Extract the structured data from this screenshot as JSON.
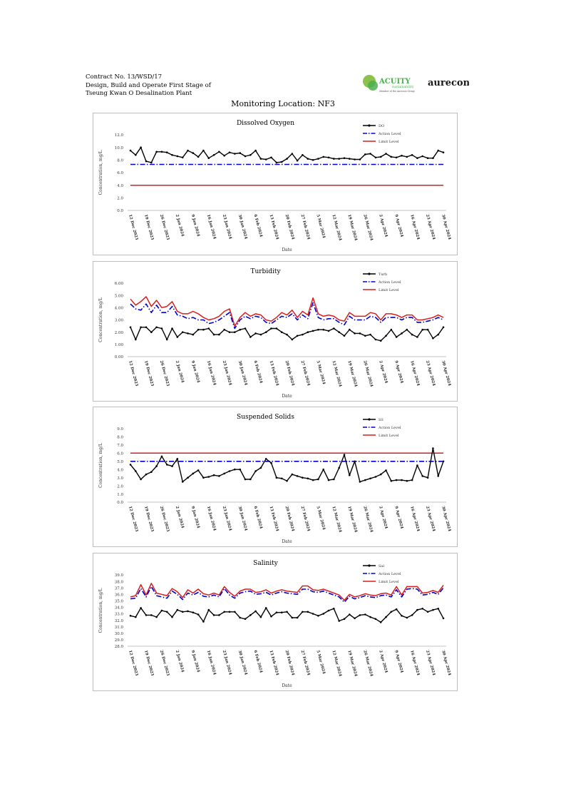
{
  "header": {
    "line1": "Contract No. 13/WSD/17",
    "line2": "Design, Build and Operate First Stage of",
    "line3": "Tseung Kwan O Desalination Plant"
  },
  "logos": {
    "acuity": "ACUITY",
    "acuity_sub": "sustainability",
    "acuity_tag": "Member of the Aurecon Group",
    "aurecon": "aurecon"
  },
  "location_title": "Monitoring Location: NF3",
  "colors": {
    "data": "#000000",
    "action": "#0000cc",
    "limit": "#d91e1e",
    "acuity_green": "#4caf50"
  },
  "x_tick_labels": [
    "12 Dec 2023",
    "19 Dec 2023",
    "26 Dec 2023",
    "2 Jan 2024",
    "9 Jan 2024",
    "16 Jan 2024",
    "23 Jan 2024",
    "30 Jan 2024",
    "6 Feb 2024",
    "13 Feb 2024",
    "20 Feb 2024",
    "27 Feb 2024",
    "5 Mar 2024",
    "12 Mar 2024",
    "19 Mar 2024",
    "26 Mar 2024",
    "2 Apr 2024",
    "9 Apr 2024",
    "16 Apr 2024",
    "23 Apr 2024",
    "30 Apr 2024"
  ],
  "chart_data": [
    {
      "type": "line",
      "title": "Dissolved Oxygen",
      "ylabel": "Concentration, mg/L",
      "xlabel": "Date",
      "ylim": [
        0,
        12
      ],
      "ytick_values": [
        0,
        2,
        4,
        6,
        8,
        10,
        12
      ],
      "ytick_labels": [
        "0.0",
        "2.0",
        "4.0",
        "6.0",
        "8.0",
        "10.0",
        "12.0"
      ],
      "legend": {
        "placement": "top-right"
      },
      "series": [
        {
          "name": "DO",
          "kind": "data",
          "values": [
            9.5,
            8.8,
            10.0,
            7.8,
            7.6,
            9.3,
            9.3,
            9.2,
            8.8,
            8.6,
            8.4,
            9.5,
            9.1,
            8.5,
            9.5,
            8.3,
            8.8,
            9.3,
            8.7,
            9.2,
            9.0,
            9.1,
            8.6,
            8.8,
            9.5,
            8.2,
            8.1,
            8.4,
            7.6,
            7.7,
            8.2,
            9.0,
            7.9,
            8.8,
            8.2,
            8.0,
            8.2,
            8.5,
            8.4,
            8.2,
            8.2,
            8.3,
            8.2,
            8.1,
            8.1,
            8.9,
            9.0,
            8.4,
            8.5,
            9.0,
            8.5,
            8.4,
            8.7,
            8.5,
            8.8,
            8.3,
            8.6,
            8.3,
            8.3,
            9.5,
            9.2
          ]
        },
        {
          "name": "Action Level",
          "kind": "action",
          "values": [
            7.3
          ]
        },
        {
          "name": "Limit Level",
          "kind": "limit",
          "values": [
            4.0
          ]
        }
      ]
    },
    {
      "type": "line",
      "title": "Turbidity",
      "ylabel": "Concentration, mg/L",
      "xlabel": "Date",
      "ylim": [
        0,
        6
      ],
      "ytick_values": [
        0,
        1,
        2,
        3,
        4,
        5,
        6
      ],
      "ytick_labels": [
        "0.00",
        "1.00",
        "2.00",
        "3.00",
        "4.00",
        "5.00",
        "6.00"
      ],
      "legend": {
        "placement": "top-right"
      },
      "series": [
        {
          "name": "Turb",
          "kind": "data",
          "values": [
            2.4,
            1.4,
            2.4,
            2.4,
            2.0,
            2.4,
            2.3,
            1.4,
            2.3,
            1.6,
            2.0,
            1.9,
            1.8,
            2.2,
            2.2,
            2.3,
            1.8,
            1.8,
            2.2,
            2.0,
            2.0,
            2.2,
            2.3,
            1.6,
            1.9,
            1.8,
            2.0,
            2.3,
            2.3,
            2.0,
            1.8,
            1.4,
            1.7,
            1.8,
            2.0,
            2.1,
            2.2,
            2.2,
            2.1,
            2.3,
            2.0,
            1.7,
            2.2,
            1.9,
            1.9,
            1.7,
            1.8,
            1.4,
            1.3,
            1.7,
            2.2,
            1.6,
            1.9,
            2.2,
            1.8,
            1.6,
            2.2,
            2.2,
            1.5,
            1.8,
            2.4
          ]
        },
        {
          "name": "Action Level",
          "kind": "action",
          "values": [
            4.3,
            3.9,
            3.8,
            4.3,
            3.6,
            4.2,
            3.6,
            3.6,
            4.1,
            3.4,
            3.3,
            3.1,
            3.2,
            3.0,
            3.0,
            2.7,
            2.8,
            3.0,
            3.3,
            3.6,
            2.3,
            3.0,
            3.3,
            3.1,
            3.3,
            3.2,
            2.8,
            2.7,
            3.0,
            3.3,
            3.2,
            3.5,
            3.0,
            3.4,
            3.1,
            4.4,
            3.2,
            3.0,
            3.1,
            3.1,
            2.8,
            2.6,
            3.3,
            3.0,
            3.0,
            3.0,
            3.3,
            3.2,
            2.8,
            3.2,
            3.2,
            3.2,
            3.0,
            3.2,
            3.2,
            2.8,
            2.8,
            2.9,
            3.0,
            3.2,
            3.0
          ]
        },
        {
          "name": "Limit Level",
          "kind": "limit",
          "values": [
            4.7,
            4.2,
            4.5,
            4.9,
            4.1,
            4.6,
            4.0,
            4.1,
            4.5,
            3.7,
            3.5,
            3.5,
            3.7,
            3.5,
            3.2,
            3.0,
            3.1,
            3.3,
            3.7,
            3.9,
            2.5,
            3.2,
            3.6,
            3.3,
            3.5,
            3.4,
            3.0,
            2.9,
            3.2,
            3.6,
            3.4,
            3.8,
            3.2,
            3.7,
            3.4,
            4.8,
            3.5,
            3.3,
            3.4,
            3.3,
            3.0,
            2.9,
            3.6,
            3.3,
            3.3,
            3.3,
            3.6,
            3.5,
            3.0,
            3.5,
            3.5,
            3.4,
            3.2,
            3.4,
            3.4,
            3.0,
            3.0,
            3.1,
            3.2,
            3.4,
            3.2
          ]
        }
      ]
    },
    {
      "type": "line",
      "title": "Suspended Solids",
      "ylabel": "Concentration, mg/L",
      "xlabel": "Date",
      "ylim": [
        0,
        9
      ],
      "ytick_values": [
        0,
        1,
        2,
        3,
        4,
        5,
        6,
        7,
        8,
        9
      ],
      "ytick_labels": [
        "0.0",
        "1.0",
        "2.0",
        "3.0",
        "4.0",
        "5.0",
        "6.0",
        "7.0",
        "8.0",
        "9.0"
      ],
      "legend": {
        "placement": "top-right"
      },
      "series": [
        {
          "name": "SS",
          "kind": "data",
          "values": [
            4.6,
            3.8,
            2.8,
            3.4,
            3.7,
            4.4,
            5.6,
            4.6,
            4.4,
            5.3,
            2.5,
            3.0,
            3.5,
            3.9,
            3.0,
            3.1,
            3.3,
            3.2,
            3.5,
            3.8,
            4.0,
            4.0,
            2.8,
            2.8,
            3.8,
            4.2,
            5.3,
            4.8,
            3.0,
            2.9,
            2.6,
            3.4,
            3.2,
            3.0,
            2.9,
            2.7,
            2.8,
            4.0,
            2.7,
            2.8,
            4.2,
            5.8,
            3.3,
            5.0,
            2.5,
            2.7,
            2.9,
            3.1,
            3.4,
            3.9,
            2.6,
            2.7,
            2.7,
            2.6,
            2.7,
            4.5,
            3.2,
            3.0,
            6.6,
            3.2,
            5.0
          ]
        },
        {
          "name": "Action Level",
          "kind": "action",
          "values": [
            5.0
          ]
        },
        {
          "name": "Limit Level",
          "kind": "limit",
          "values": [
            6.0
          ]
        }
      ]
    },
    {
      "type": "line",
      "title": "Salinity",
      "ylabel": "Concentration, mg/L",
      "xlabel": "Date",
      "ylim": [
        28,
        39
      ],
      "ytick_values": [
        28,
        29,
        30,
        31,
        32,
        33,
        34,
        35,
        36,
        37,
        38,
        39
      ],
      "ytick_labels": [
        "28.0",
        "29.0",
        "30.0",
        "31.0",
        "32.0",
        "33.0",
        "34.0",
        "35.0",
        "36.0",
        "37.0",
        "38.0",
        "39.0"
      ],
      "legend": {
        "placement": "top-right"
      },
      "series": [
        {
          "name": "Sal",
          "kind": "data",
          "values": [
            32.7,
            32.5,
            33.9,
            32.8,
            32.8,
            32.5,
            33.5,
            33.3,
            32.5,
            33.6,
            33.3,
            33.4,
            33.2,
            32.9,
            31.8,
            33.6,
            32.8,
            32.8,
            33.3,
            33.3,
            33.3,
            32.4,
            32.2,
            32.8,
            33.4,
            32.5,
            33.9,
            32.6,
            33.2,
            33.2,
            33.3,
            32.4,
            32.4,
            33.3,
            33.3,
            33.0,
            32.7,
            33.0,
            33.5,
            33.8,
            31.9,
            32.2,
            32.9,
            32.3,
            32.8,
            32.9,
            32.5,
            32.2,
            31.7,
            32.5,
            33.3,
            33.7,
            32.7,
            32.4,
            32.8,
            33.6,
            33.8,
            33.3,
            33.6,
            33.8,
            32.3
          ]
        },
        {
          "name": "Action Level",
          "kind": "action",
          "values": [
            35.3,
            35.4,
            36.9,
            35.6,
            37.2,
            35.8,
            35.6,
            35.4,
            36.5,
            36.0,
            35.2,
            36.2,
            35.9,
            36.3,
            35.7,
            35.6,
            35.9,
            35.6,
            36.9,
            35.9,
            35.4,
            36.2,
            36.4,
            36.5,
            36.0,
            36.1,
            36.3,
            35.9,
            36.2,
            36.4,
            36.2,
            36.1,
            36.0,
            36.8,
            36.8,
            36.4,
            36.3,
            36.5,
            36.2,
            35.9,
            35.6,
            34.8,
            35.7,
            35.3,
            35.5,
            35.8,
            35.6,
            35.5,
            35.8,
            35.9,
            35.6,
            36.7,
            35.6,
            36.8,
            36.9,
            36.8,
            35.9,
            36.0,
            36.3,
            36.0,
            37.0
          ]
        },
        {
          "name": "Limit Level",
          "kind": "limit",
          "values": [
            35.6,
            35.8,
            37.5,
            35.9,
            37.7,
            36.2,
            36.0,
            35.8,
            36.9,
            36.4,
            35.5,
            36.7,
            36.2,
            36.8,
            36.1,
            35.9,
            36.2,
            35.9,
            37.2,
            36.3,
            35.7,
            36.5,
            36.8,
            36.8,
            36.3,
            36.4,
            36.7,
            36.2,
            36.5,
            36.7,
            36.5,
            36.4,
            36.3,
            37.3,
            37.3,
            36.7,
            36.6,
            36.8,
            36.5,
            36.2,
            35.9,
            35.1,
            36.0,
            35.6,
            35.8,
            36.1,
            35.9,
            35.8,
            36.1,
            36.2,
            35.9,
            37.2,
            35.9,
            37.2,
            37.2,
            37.2,
            36.2,
            36.3,
            36.6,
            36.3,
            37.4
          ]
        }
      ]
    }
  ]
}
